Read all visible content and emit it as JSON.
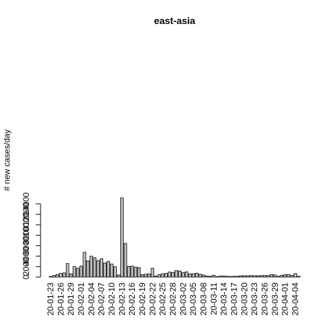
{
  "chart_data": {
    "type": "bar",
    "title": "east-asia",
    "xlabel": "",
    "ylabel": "# new cases/day",
    "ylim": [
      0,
      15200
    ],
    "y_ticks": [
      0,
      2000,
      4000,
      6000,
      8000,
      10000,
      12000,
      14000
    ],
    "bar_fill": "#bebebe",
    "bar_stroke": "#000000",
    "x_tick_labels": [
      "20-01-23",
      "20-01-26",
      "20-01-29",
      "20-02-01",
      "20-02-04",
      "20-02-07",
      "20-02-10",
      "20-02-13",
      "20-02-16",
      "20-02-19",
      "20-02-22",
      "20-02-25",
      "20-02-28",
      "20-03-02",
      "20-03-05",
      "20-03-08",
      "20-03-11",
      "20-03-14",
      "20-03-17",
      "20-03-20",
      "20-03-23",
      "20-03-26",
      "20-03-29",
      "20-04-01",
      "20-04-04"
    ],
    "categories": [
      "20-01-23",
      "20-01-24",
      "20-01-25",
      "20-01-26",
      "20-01-27",
      "20-01-28",
      "20-01-29",
      "20-01-30",
      "20-01-31",
      "20-02-01",
      "20-02-02",
      "20-02-03",
      "20-02-04",
      "20-02-05",
      "20-02-06",
      "20-02-07",
      "20-02-08",
      "20-02-09",
      "20-02-10",
      "20-02-11",
      "20-02-12",
      "20-02-13",
      "20-02-14",
      "20-02-15",
      "20-02-16",
      "20-02-17",
      "20-02-18",
      "20-02-19",
      "20-02-20",
      "20-02-21",
      "20-02-22",
      "20-02-23",
      "20-02-24",
      "20-02-25",
      "20-02-26",
      "20-02-27",
      "20-02-28",
      "20-02-29",
      "20-03-01",
      "20-03-02",
      "20-03-03",
      "20-03-04",
      "20-03-05",
      "20-03-06",
      "20-03-07",
      "20-03-08",
      "20-03-09",
      "20-03-10",
      "20-03-11",
      "20-03-12",
      "20-03-13",
      "20-03-14",
      "20-03-15",
      "20-03-16",
      "20-03-17",
      "20-03-18",
      "20-03-19",
      "20-03-20",
      "20-03-21",
      "20-03-22",
      "20-03-23",
      "20-03-24",
      "20-03-25",
      "20-03-26",
      "20-03-27",
      "20-03-28",
      "20-03-29",
      "20-03-30",
      "20-03-31",
      "20-04-01",
      "20-04-02",
      "20-04-03",
      "20-04-04",
      "20-04-05"
    ],
    "values": [
      100,
      300,
      500,
      700,
      800,
      2600,
      600,
      2000,
      1700,
      2100,
      4750,
      3100,
      4000,
      3700,
      3150,
      3500,
      2700,
      3000,
      2500,
      2000,
      400,
      15150,
      6450,
      2050,
      2100,
      1900,
      1800,
      450,
      550,
      600,
      1700,
      200,
      450,
      650,
      700,
      950,
      900,
      1250,
      1150,
      850,
      1000,
      600,
      650,
      750,
      550,
      400,
      200,
      150,
      350,
      100,
      200,
      200,
      150,
      100,
      150,
      150,
      250,
      250,
      250,
      300,
      250,
      250,
      300,
      300,
      300,
      500,
      400,
      150,
      350,
      450,
      500,
      300,
      650,
      150
    ]
  }
}
